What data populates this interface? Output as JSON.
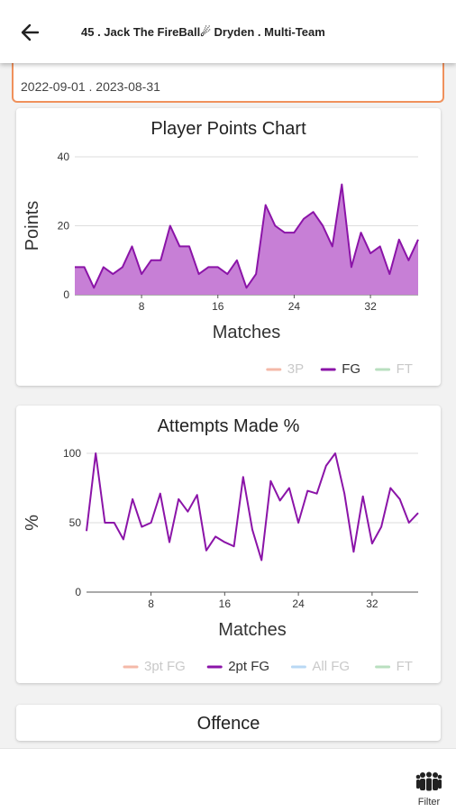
{
  "header": {
    "title": "45 . Jack  The FireBall☄ Dryden . Multi-Team",
    "back_icon": "arrow-left-icon"
  },
  "date_range": {
    "value": "2022-09-01 . 2023-08-31"
  },
  "points_chart": {
    "title": "Player Points Chart",
    "xlabel": "Matches",
    "ylabel": "Points",
    "legend": [
      {
        "label": "3P",
        "color": "#f4b9a8",
        "active": false
      },
      {
        "label": "FG",
        "color": "#8b14a8",
        "active": true
      },
      {
        "label": "FT",
        "color": "#b9dfbf",
        "active": false
      }
    ]
  },
  "attempts_chart": {
    "title": "Attempts Made %",
    "xlabel": "Matches",
    "ylabel": "%",
    "legend": [
      {
        "label": "3pt FG",
        "color": "#f4b9a8",
        "active": false
      },
      {
        "label": "2pt FG",
        "color": "#8b14a8",
        "active": true
      },
      {
        "label": "All FG",
        "color": "#b9d8f4",
        "active": false
      },
      {
        "label": "FT",
        "color": "#b9dfbf",
        "active": false
      }
    ]
  },
  "offence": {
    "title": "Offence"
  },
  "bottom": {
    "filter_label": "Filter",
    "filter_icon": "team-filter-icon"
  },
  "chart_data": [
    {
      "type": "area",
      "title": "Player Points Chart",
      "xlabel": "Matches",
      "ylabel": "Points",
      "xlim": [
        1,
        37
      ],
      "ylim": [
        0,
        40
      ],
      "x_ticks": [
        8,
        16,
        24,
        32
      ],
      "y_ticks": [
        0,
        20,
        40
      ],
      "grid": true,
      "legend_position": "bottom-right",
      "series": [
        {
          "name": "3P",
          "values": []
        },
        {
          "name": "FG",
          "x": [
            1,
            2,
            3,
            4,
            5,
            6,
            7,
            8,
            9,
            10,
            11,
            12,
            13,
            14,
            15,
            16,
            17,
            18,
            19,
            20,
            21,
            22,
            23,
            24,
            25,
            26,
            27,
            28,
            29,
            30,
            31,
            32,
            33,
            34,
            35,
            36,
            37
          ],
          "values": [
            8,
            8,
            2,
            8,
            6,
            8,
            14,
            6,
            10,
            10,
            20,
            14,
            14,
            6,
            8,
            8,
            6,
            10,
            2,
            6,
            26,
            20,
            18,
            18,
            22,
            24,
            20,
            14,
            32,
            8,
            18,
            12,
            14,
            6,
            16,
            10,
            16
          ]
        },
        {
          "name": "FT",
          "values": []
        }
      ]
    },
    {
      "type": "line",
      "title": "Attempts Made %",
      "xlabel": "Matches",
      "ylabel": "%",
      "xlim": [
        1,
        37
      ],
      "ylim": [
        0,
        100
      ],
      "x_ticks": [
        8,
        16,
        24,
        32
      ],
      "y_ticks": [
        0,
        50,
        100
      ],
      "grid": true,
      "legend_position": "bottom-right",
      "series": [
        {
          "name": "3pt FG",
          "values": []
        },
        {
          "name": "2pt FG",
          "x": [
            1,
            2,
            3,
            4,
            5,
            6,
            7,
            8,
            9,
            10,
            11,
            12,
            13,
            14,
            15,
            16,
            17,
            18,
            19,
            20,
            21,
            22,
            23,
            24,
            25,
            26,
            27,
            28,
            29,
            30,
            31,
            32,
            33,
            34,
            35,
            36,
            37
          ],
          "values": [
            44,
            100,
            50,
            50,
            38,
            67,
            47,
            50,
            71,
            36,
            67,
            58,
            70,
            30,
            40,
            36,
            33,
            83,
            45,
            23,
            80,
            66,
            75,
            50,
            73,
            71,
            91,
            100,
            71,
            29,
            69,
            35,
            47,
            75,
            67,
            50,
            57
          ]
        },
        {
          "name": "All FG",
          "values": []
        },
        {
          "name": "FT",
          "values": []
        }
      ]
    }
  ]
}
